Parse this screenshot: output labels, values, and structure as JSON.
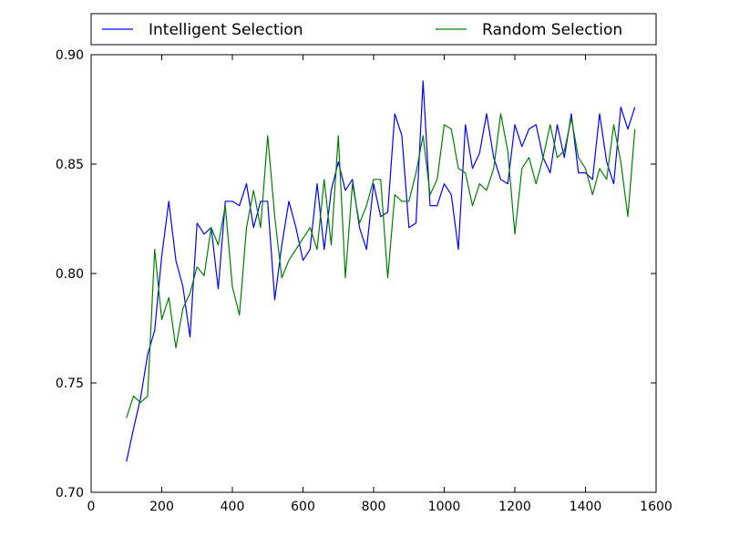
{
  "chart_data": {
    "type": "line",
    "title": "",
    "xlabel": "",
    "ylabel": "",
    "xlim": [
      0,
      1600
    ],
    "ylim": [
      0.7,
      0.9
    ],
    "xticks": [
      0,
      200,
      400,
      600,
      800,
      1000,
      1200,
      1400,
      1600
    ],
    "yticks": [
      0.7,
      0.75,
      0.8,
      0.85,
      0.9
    ],
    "xtick_labels": [
      "0",
      "200",
      "400",
      "600",
      "800",
      "1000",
      "1200",
      "1400",
      "1600"
    ],
    "ytick_labels": [
      "0.70",
      "0.75",
      "0.80",
      "0.85",
      "0.90"
    ],
    "grid": false,
    "legend_placement": "top, above plot, two columns",
    "x": [
      100,
      120,
      140,
      160,
      180,
      200,
      220,
      240,
      260,
      280,
      300,
      320,
      340,
      360,
      380,
      400,
      420,
      440,
      460,
      480,
      500,
      520,
      540,
      560,
      580,
      600,
      620,
      640,
      660,
      680,
      700,
      720,
      740,
      760,
      780,
      800,
      820,
      840,
      860,
      880,
      900,
      920,
      940,
      960,
      980,
      1000,
      1020,
      1040,
      1060,
      1080,
      1100,
      1120,
      1140,
      1160,
      1180,
      1200,
      1220,
      1240,
      1260,
      1280,
      1300,
      1320,
      1340,
      1360,
      1380,
      1400,
      1420,
      1440,
      1460,
      1480,
      1500,
      1520,
      1540
    ],
    "series": [
      {
        "name": "Intelligent Selection",
        "color": "#0000ff",
        "values": [
          0.714,
          0.729,
          0.743,
          0.763,
          0.774,
          0.808,
          0.833,
          0.806,
          0.794,
          0.771,
          0.823,
          0.818,
          0.821,
          0.793,
          0.833,
          0.833,
          0.831,
          0.841,
          0.821,
          0.833,
          0.833,
          0.788,
          0.813,
          0.833,
          0.821,
          0.806,
          0.811,
          0.841,
          0.811,
          0.838,
          0.851,
          0.838,
          0.843,
          0.821,
          0.811,
          0.841,
          0.826,
          0.828,
          0.873,
          0.863,
          0.821,
          0.823,
          0.888,
          0.831,
          0.831,
          0.841,
          0.836,
          0.811,
          0.868,
          0.848,
          0.855,
          0.873,
          0.853,
          0.843,
          0.841,
          0.868,
          0.858,
          0.866,
          0.868,
          0.853,
          0.846,
          0.868,
          0.853,
          0.873,
          0.846,
          0.846,
          0.843,
          0.873,
          0.851,
          0.841,
          0.876,
          0.866,
          0.876
        ]
      },
      {
        "name": "Random Selection",
        "color": "#008000",
        "values": [
          0.734,
          0.744,
          0.741,
          0.744,
          0.811,
          0.779,
          0.789,
          0.766,
          0.784,
          0.791,
          0.803,
          0.799,
          0.821,
          0.813,
          0.831,
          0.794,
          0.781,
          0.821,
          0.838,
          0.821,
          0.863,
          0.826,
          0.798,
          0.806,
          0.811,
          0.816,
          0.821,
          0.811,
          0.843,
          0.813,
          0.863,
          0.798,
          0.841,
          0.823,
          0.831,
          0.843,
          0.843,
          0.798,
          0.836,
          0.833,
          0.833,
          0.846,
          0.863,
          0.836,
          0.843,
          0.868,
          0.866,
          0.848,
          0.846,
          0.831,
          0.841,
          0.838,
          0.848,
          0.873,
          0.856,
          0.818,
          0.848,
          0.853,
          0.841,
          0.853,
          0.868,
          0.853,
          0.856,
          0.871,
          0.853,
          0.848,
          0.836,
          0.848,
          0.843,
          0.868,
          0.851,
          0.826,
          0.866
        ]
      }
    ]
  }
}
